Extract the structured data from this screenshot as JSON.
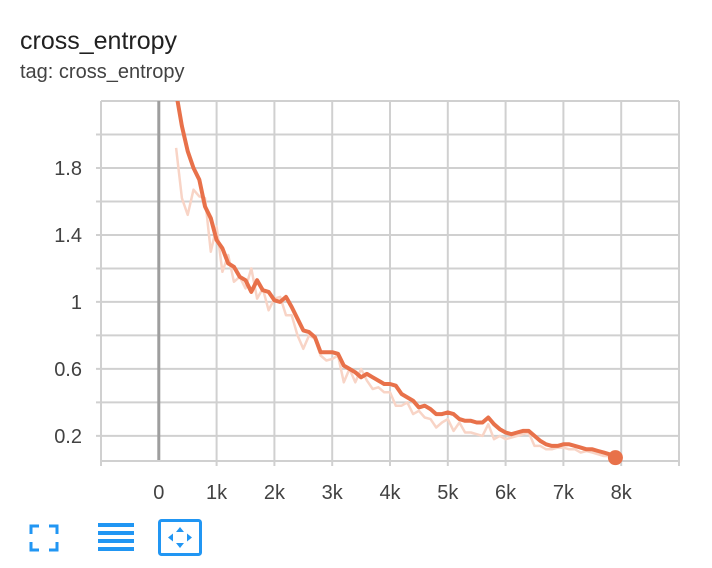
{
  "card": {
    "title": "cross_entropy",
    "subtitle": "tag: cross_entropy"
  },
  "toolbar": [
    {
      "icon": "fullscreen-icon"
    },
    {
      "icon": "toggle-log-scale-icon"
    },
    {
      "icon": "fit-domain-icon"
    }
  ],
  "colors": {
    "smoothed": "#e8714a",
    "raw": "#f8d4c6",
    "grid": "#d0d0d0",
    "zero_axis": "#9e9e9e",
    "icon": "#2196f3"
  },
  "chart_data": {
    "type": "line",
    "xlim": [
      -1000,
      9000
    ],
    "ylim": [
      0.05,
      2.2
    ],
    "x_ticks": [
      0,
      1000,
      2000,
      3000,
      4000,
      5000,
      6000,
      7000,
      8000
    ],
    "x_tick_labels": [
      "0",
      "1k",
      "2k",
      "3k",
      "4k",
      "5k",
      "6k",
      "7k",
      "8k"
    ],
    "y_ticks": [
      0.2,
      0.6,
      1.0,
      1.4,
      1.8
    ],
    "y_tick_labels": [
      "0.2",
      "0.6",
      "1",
      "1.4",
      "1.8"
    ],
    "grid": true,
    "series": [
      {
        "role": "raw",
        "x": [
          300,
          400,
          500,
          600,
          700,
          800,
          900,
          1000,
          1100,
          1200,
          1300,
          1400,
          1500,
          1600,
          1700,
          1800,
          1900,
          2000,
          2100,
          2200,
          2300,
          2400,
          2500,
          2600,
          2700,
          2800,
          2900,
          3000,
          3100,
          3200,
          3300,
          3400,
          3500,
          3600,
          3700,
          3800,
          3900,
          4000,
          4100,
          4200,
          4300,
          4400,
          4500,
          4600,
          4700,
          4800,
          4900,
          5000,
          5100,
          5200,
          5300,
          5400,
          5500,
          5600,
          5700,
          5800,
          5900,
          6000,
          6100,
          6200,
          6300,
          6400,
          6500,
          6600,
          6700,
          6800,
          6900,
          7000,
          7100,
          7200,
          7300,
          7400,
          7500,
          7600,
          7700,
          7800,
          7900
        ],
        "y": [
          1.92,
          1.62,
          1.52,
          1.67,
          1.63,
          1.62,
          1.3,
          1.45,
          1.18,
          1.28,
          1.12,
          1.15,
          1.08,
          1.2,
          1.02,
          1.08,
          0.95,
          1.02,
          1.03,
          0.92,
          0.92,
          0.8,
          0.72,
          0.8,
          0.78,
          0.68,
          0.65,
          0.66,
          0.68,
          0.52,
          0.6,
          0.52,
          0.6,
          0.53,
          0.48,
          0.49,
          0.46,
          0.46,
          0.38,
          0.38,
          0.4,
          0.33,
          0.35,
          0.31,
          0.3,
          0.25,
          0.28,
          0.3,
          0.23,
          0.28,
          0.22,
          0.22,
          0.21,
          0.2,
          0.27,
          0.18,
          0.2,
          0.18,
          0.19,
          0.2,
          0.21,
          0.22,
          0.14,
          0.14,
          0.12,
          0.12,
          0.13,
          0.13,
          0.12,
          0.12,
          0.1,
          0.11,
          0.1,
          0.09,
          0.08,
          0.08,
          0.07
        ]
      },
      {
        "role": "smoothed",
        "x": [
          300,
          400,
          500,
          600,
          700,
          800,
          900,
          1000,
          1100,
          1200,
          1300,
          1400,
          1500,
          1600,
          1700,
          1800,
          1900,
          2000,
          2100,
          2200,
          2300,
          2400,
          2500,
          2600,
          2700,
          2800,
          2900,
          3000,
          3100,
          3200,
          3300,
          3400,
          3500,
          3600,
          3700,
          3800,
          3900,
          4000,
          4100,
          4200,
          4300,
          4400,
          4500,
          4600,
          4700,
          4800,
          4900,
          5000,
          5100,
          5200,
          5300,
          5400,
          5500,
          5600,
          5700,
          5800,
          5900,
          6000,
          6100,
          6200,
          6300,
          6400,
          6500,
          6600,
          6700,
          6800,
          6900,
          7000,
          7100,
          7200,
          7300,
          7400,
          7500,
          7600,
          7700,
          7800,
          7900
        ],
        "y": [
          2.25,
          2.05,
          1.9,
          1.8,
          1.73,
          1.57,
          1.5,
          1.37,
          1.32,
          1.23,
          1.21,
          1.15,
          1.13,
          1.06,
          1.13,
          1.07,
          1.06,
          1.01,
          1.0,
          1.03,
          0.97,
          0.9,
          0.83,
          0.82,
          0.79,
          0.7,
          0.7,
          0.7,
          0.69,
          0.62,
          0.6,
          0.58,
          0.55,
          0.57,
          0.55,
          0.53,
          0.51,
          0.51,
          0.5,
          0.45,
          0.43,
          0.41,
          0.37,
          0.38,
          0.36,
          0.33,
          0.33,
          0.34,
          0.33,
          0.3,
          0.29,
          0.29,
          0.28,
          0.28,
          0.31,
          0.27,
          0.24,
          0.22,
          0.21,
          0.22,
          0.23,
          0.23,
          0.2,
          0.17,
          0.15,
          0.14,
          0.14,
          0.15,
          0.15,
          0.14,
          0.13,
          0.12,
          0.12,
          0.11,
          0.1,
          0.09,
          0.07
        ]
      }
    ]
  }
}
